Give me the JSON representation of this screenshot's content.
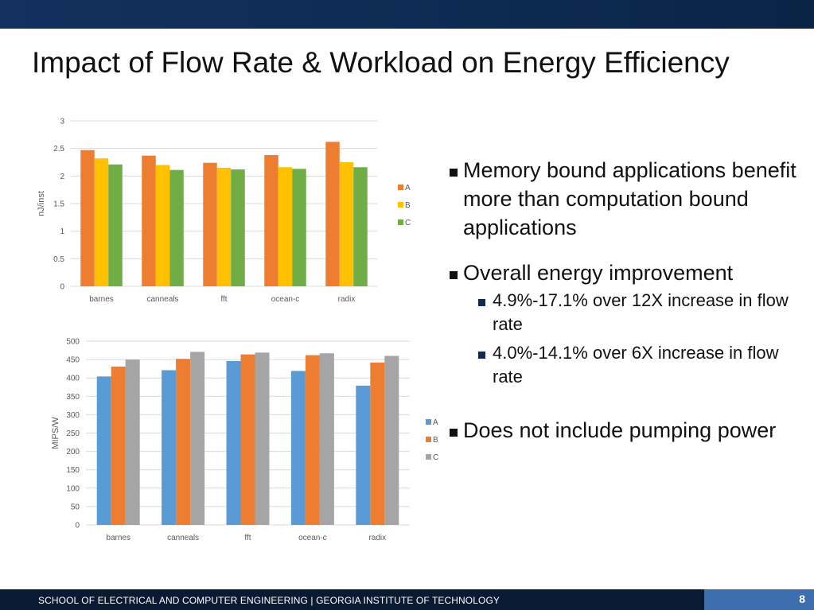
{
  "slide": {
    "title": "Impact of Flow Rate & Workload on Energy Efficiency",
    "page_number": "8",
    "footer": "SCHOOL OF ELECTRICAL AND COMPUTER ENGINEERING | GEORGIA INSTITUTE OF TECHNOLOGY"
  },
  "bullets": [
    {
      "text": "Memory bound applications benefit more than computation bound applications",
      "sub": []
    },
    {
      "text": "Overall energy improvement",
      "sub": [
        "4.9%-17.1% over 12X increase in flow rate",
        "4.0%-14.1% over 6X increase in flow rate"
      ]
    },
    {
      "text": "Does not include pumping power",
      "sub": []
    }
  ],
  "chart_data": [
    {
      "type": "bar",
      "categories": [
        "barnes",
        "canneals",
        "fft",
        "ocean-c",
        "radix"
      ],
      "series": [
        {
          "name": "A",
          "color": "#ed7d31",
          "values": [
            2.47,
            2.37,
            2.24,
            2.38,
            2.62
          ]
        },
        {
          "name": "B",
          "color": "#ffc000",
          "values": [
            2.32,
            2.2,
            2.15,
            2.16,
            2.25
          ]
        },
        {
          "name": "C",
          "color": "#70ad47",
          "values": [
            2.21,
            2.11,
            2.12,
            2.13,
            2.16
          ]
        }
      ],
      "ylabel": "nJ/inst",
      "ylim": [
        0,
        3
      ],
      "yticks": [
        "0",
        "0.5",
        "1",
        "1.5",
        "2",
        "2.5",
        "3"
      ],
      "grid": true,
      "legend": "right"
    },
    {
      "type": "bar",
      "categories": [
        "barnes",
        "canneals",
        "fft",
        "ocean-c",
        "radix"
      ],
      "series": [
        {
          "name": "A",
          "color": "#5b9bd5",
          "values": [
            404,
            421,
            446,
            419,
            379
          ]
        },
        {
          "name": "B",
          "color": "#ed7d31",
          "values": [
            431,
            452,
            464,
            462,
            442
          ]
        },
        {
          "name": "C",
          "color": "#a5a5a5",
          "values": [
            450,
            471,
            469,
            467,
            460
          ]
        }
      ],
      "ylabel": "MIPS/W",
      "ylim": [
        0,
        500
      ],
      "yticks": [
        "0",
        "50",
        "100",
        "150",
        "200",
        "250",
        "300",
        "350",
        "400",
        "450",
        "500"
      ],
      "grid": true,
      "legend": "right"
    }
  ]
}
